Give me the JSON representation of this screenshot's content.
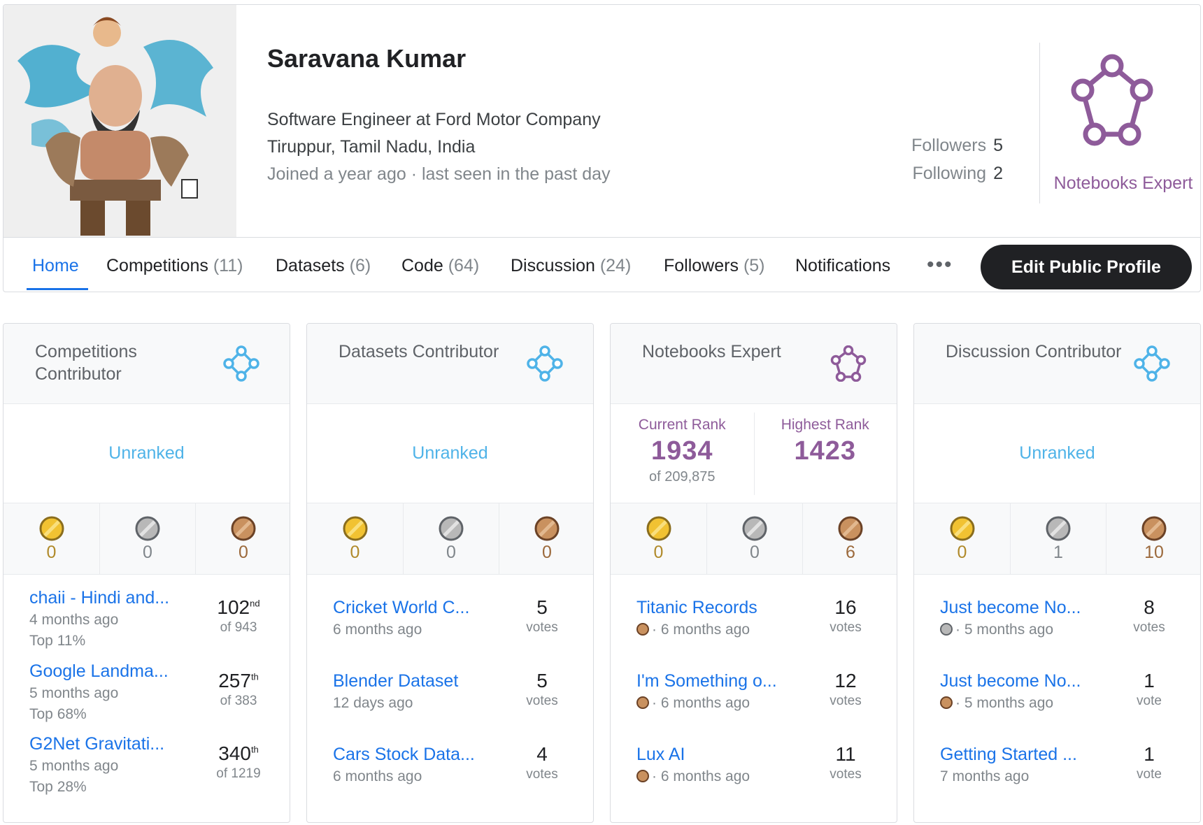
{
  "profile": {
    "name": "Saravana Kumar",
    "occupation": "Software Engineer at Ford Motor Company",
    "location": "Tiruppur, Tamil Nadu, India",
    "joined": "Joined a year ago · last seen in the past day",
    "followers_label": "Followers",
    "followers_count": "5",
    "following_label": "Following",
    "following_count": "2",
    "tier": "Notebooks Expert",
    "tier_color": "#8e5b9a",
    "contributor_color": "#4fb3e8"
  },
  "tabs": [
    {
      "label": "Home",
      "count": ""
    },
    {
      "label": "Competitions",
      "count": "(11)"
    },
    {
      "label": "Datasets",
      "count": "(6)"
    },
    {
      "label": "Code",
      "count": "(64)"
    },
    {
      "label": "Discussion",
      "count": "(24)"
    },
    {
      "label": "Followers",
      "count": "(5)"
    },
    {
      "label": "Notifications",
      "count": ""
    }
  ],
  "more_label": "•••",
  "edit_button": "Edit Public Profile",
  "cards": [
    {
      "title": "Competitions Contributor",
      "rank_text": "Unranked",
      "medals": {
        "gold": "0",
        "silver": "0",
        "bronze": "0"
      },
      "items": [
        {
          "title": "chaii - Hindi and...",
          "meta": "4 months ago",
          "top": "Top 11%",
          "place": "102",
          "suffix": "nd",
          "of": "of 943"
        },
        {
          "title": "Google Landma...",
          "meta": "5 months ago",
          "top": "Top 68%",
          "place": "257",
          "suffix": "th",
          "of": "of 383"
        },
        {
          "title": "G2Net Gravitati...",
          "meta": "5 months ago",
          "top": "Top 28%",
          "place": "340",
          "suffix": "th",
          "of": "of 1219"
        }
      ]
    },
    {
      "title": "Datasets Contributor",
      "rank_text": "Unranked",
      "medals": {
        "gold": "0",
        "silver": "0",
        "bronze": "0"
      },
      "items": [
        {
          "title": "Cricket World C...",
          "meta": "6 months ago",
          "votes": "5",
          "votes_label": "votes"
        },
        {
          "title": "Blender Dataset",
          "meta": "12 days ago",
          "votes": "5",
          "votes_label": "votes"
        },
        {
          "title": "Cars Stock Data...",
          "meta": "6 months ago",
          "votes": "4",
          "votes_label": "votes"
        }
      ]
    },
    {
      "title": "Notebooks Expert",
      "current_rank_label": "Current Rank",
      "current_rank": "1934",
      "current_rank_of": "of 209,875",
      "highest_rank_label": "Highest Rank",
      "highest_rank": "1423",
      "medals": {
        "gold": "0",
        "silver": "0",
        "bronze": "6"
      },
      "items": [
        {
          "title": "Titanic Records",
          "medal": "bronze",
          "meta": "· 6 months ago",
          "votes": "16",
          "votes_label": "votes"
        },
        {
          "title": "I'm Something o...",
          "medal": "bronze",
          "meta": "· 6 months ago",
          "votes": "12",
          "votes_label": "votes"
        },
        {
          "title": "Lux AI",
          "medal": "bronze",
          "meta": "· 6 months ago",
          "votes": "11",
          "votes_label": "votes"
        }
      ]
    },
    {
      "title": "Discussion Contributor",
      "rank_text": "Unranked",
      "medals": {
        "gold": "0",
        "silver": "1",
        "bronze": "10"
      },
      "items": [
        {
          "title": "Just become No...",
          "medal": "silver",
          "meta": "· 5 months ago",
          "votes": "8",
          "votes_label": "votes"
        },
        {
          "title": "Just become No...",
          "medal": "bronze",
          "meta": "· 5 months ago",
          "votes": "1",
          "votes_label": "vote"
        },
        {
          "title": "Getting Started ...",
          "meta": "7 months ago",
          "votes": "1",
          "votes_label": "vote"
        }
      ]
    }
  ]
}
